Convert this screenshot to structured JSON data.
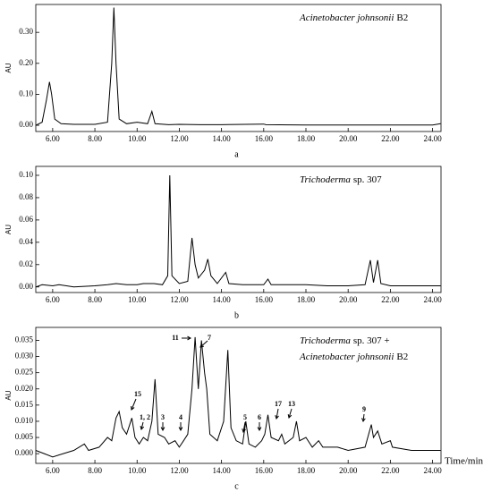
{
  "chart_data": [
    {
      "type": "line",
      "ylabel": "AU",
      "caption": "a",
      "annotation": [
        "Acinetobacter johnsonii",
        "B2"
      ],
      "color": "#000000",
      "x": [
        5.2,
        5.5,
        5.7,
        5.85,
        5.95,
        6.1,
        6.4,
        7.0,
        8.0,
        8.6,
        8.8,
        8.9,
        9.0,
        9.15,
        9.5,
        10.0,
        10.5,
        10.7,
        10.85,
        11.5,
        12.0,
        13.0,
        14.0,
        16.0,
        16.1,
        18.0,
        20.0,
        22.0,
        24.0,
        24.38
      ],
      "values": [
        0.0,
        0.01,
        0.08,
        0.14,
        0.1,
        0.02,
        0.005,
        0.003,
        0.003,
        0.01,
        0.2,
        0.38,
        0.2,
        0.02,
        0.005,
        0.01,
        0.005,
        0.045,
        0.005,
        0.002,
        0.003,
        0.002,
        0.002,
        0.004,
        0.002,
        0.001,
        0.001,
        0.001,
        0.001,
        0.005
      ],
      "xlim": [
        5.2,
        24.4
      ],
      "ylim": [
        -0.02,
        0.39
      ],
      "xticks": [
        {
          "value": 6,
          "label": "6.00"
        },
        {
          "value": 8,
          "label": "8.00"
        },
        {
          "value": 10,
          "label": "10.00"
        },
        {
          "value": 12,
          "label": "12.00"
        },
        {
          "value": 14,
          "label": "14.00"
        },
        {
          "value": 16,
          "label": "16.00"
        },
        {
          "value": 18,
          "label": "18.00"
        },
        {
          "value": 20,
          "label": "20.00"
        },
        {
          "value": 22,
          "label": "22.00"
        },
        {
          "value": 24,
          "label": "24.00"
        }
      ],
      "yticks": [
        {
          "value": 0,
          "label": "0.00"
        },
        {
          "value": 0.1,
          "label": "0.10"
        },
        {
          "value": 0.2,
          "label": "0.20"
        },
        {
          "value": 0.3,
          "label": "0.30"
        }
      ]
    },
    {
      "type": "line",
      "ylabel": "AU",
      "caption": "b",
      "annotation": [
        "Trichoderma",
        "sp. 307"
      ],
      "color": "#000000",
      "x": [
        5.2,
        5.5,
        6.0,
        6.3,
        7.0,
        8.0,
        8.6,
        9.0,
        9.5,
        10.0,
        10.3,
        10.8,
        11.2,
        11.45,
        11.55,
        11.65,
        12.0,
        12.4,
        12.6,
        12.75,
        12.9,
        13.2,
        13.35,
        13.5,
        13.8,
        14.2,
        14.35,
        15.0,
        16.0,
        16.2,
        16.35,
        17.0,
        18.0,
        19.0,
        20.0,
        20.8,
        21.05,
        21.2,
        21.4,
        21.55,
        22.0,
        23.0,
        24.0,
        24.38
      ],
      "values": [
        0.0,
        0.002,
        0.001,
        0.002,
        0.0,
        0.001,
        0.002,
        0.003,
        0.002,
        0.002,
        0.003,
        0.003,
        0.002,
        0.01,
        0.1,
        0.01,
        0.003,
        0.005,
        0.044,
        0.02,
        0.008,
        0.015,
        0.025,
        0.01,
        0.003,
        0.013,
        0.003,
        0.002,
        0.002,
        0.007,
        0.002,
        0.002,
        0.002,
        0.001,
        0.001,
        0.002,
        0.024,
        0.004,
        0.024,
        0.003,
        0.001,
        0.001,
        0.001,
        0.001
      ],
      "xlim": [
        5.2,
        24.4
      ],
      "ylim": [
        -0.005,
        0.108
      ],
      "xticks": [
        {
          "value": 6,
          "label": "6.00"
        },
        {
          "value": 8,
          "label": "8.00"
        },
        {
          "value": 10,
          "label": "10.00"
        },
        {
          "value": 12,
          "label": "12.00"
        },
        {
          "value": 14,
          "label": "14.00"
        },
        {
          "value": 16,
          "label": "16.00"
        },
        {
          "value": 18,
          "label": "18.00"
        },
        {
          "value": 20,
          "label": "20.00"
        },
        {
          "value": 22,
          "label": "22.00"
        },
        {
          "value": 24,
          "label": "24.00"
        }
      ],
      "yticks": [
        {
          "value": 0,
          "label": "0.00"
        },
        {
          "value": 0.02,
          "label": "0.02"
        },
        {
          "value": 0.04,
          "label": "0.04"
        },
        {
          "value": 0.06,
          "label": "0.06"
        },
        {
          "value": 0.08,
          "label": "0.08"
        },
        {
          "value": 0.1,
          "label": "0.10"
        }
      ]
    },
    {
      "type": "line",
      "ylabel": "AU",
      "caption": "c",
      "xlabel": "Time/min",
      "annotation": [
        "Trichoderma",
        "sp. 307 +",
        "Acinetobacter johnsonii",
        "B2"
      ],
      "peak_labels": [
        "11",
        "7",
        "15",
        "1, 2",
        "3",
        "4",
        "5",
        "6",
        "17",
        "13",
        "9"
      ],
      "color": "#000000",
      "x": [
        5.2,
        5.6,
        6.0,
        6.5,
        7.0,
        7.5,
        7.7,
        8.2,
        8.6,
        8.8,
        9.0,
        9.15,
        9.3,
        9.5,
        9.75,
        9.9,
        10.1,
        10.3,
        10.5,
        10.7,
        10.85,
        11.0,
        11.3,
        11.5,
        11.8,
        12.0,
        12.2,
        12.4,
        12.6,
        12.75,
        12.9,
        13.05,
        13.2,
        13.3,
        13.45,
        13.8,
        14.1,
        14.3,
        14.45,
        14.7,
        15.0,
        15.15,
        15.3,
        15.6,
        15.9,
        16.05,
        16.2,
        16.35,
        16.7,
        16.85,
        17.0,
        17.4,
        17.55,
        17.7,
        18.0,
        18.3,
        18.6,
        18.8,
        19.5,
        20.0,
        20.8,
        21.1,
        21.2,
        21.4,
        21.6,
        22.0,
        22.1,
        23.0,
        24.0,
        24.38
      ],
      "values": [
        0.001,
        0.0,
        -0.001,
        0.0,
        0.001,
        0.003,
        0.001,
        0.002,
        0.005,
        0.004,
        0.011,
        0.013,
        0.008,
        0.006,
        0.011,
        0.005,
        0.003,
        0.005,
        0.004,
        0.01,
        0.023,
        0.006,
        0.005,
        0.003,
        0.004,
        0.002,
        0.004,
        0.006,
        0.02,
        0.036,
        0.02,
        0.035,
        0.025,
        0.02,
        0.006,
        0.004,
        0.01,
        0.032,
        0.008,
        0.004,
        0.003,
        0.01,
        0.003,
        0.002,
        0.004,
        0.006,
        0.012,
        0.005,
        0.004,
        0.006,
        0.003,
        0.005,
        0.01,
        0.004,
        0.005,
        0.002,
        0.004,
        0.002,
        0.002,
        0.001,
        0.002,
        0.009,
        0.005,
        0.007,
        0.003,
        0.004,
        0.002,
        0.001,
        0.001,
        0.001
      ],
      "xlim": [
        5.2,
        24.4
      ],
      "ylim": [
        -0.003,
        0.039
      ],
      "xticks": [
        {
          "value": 6,
          "label": "6.00"
        },
        {
          "value": 8,
          "label": "8.00"
        },
        {
          "value": 10,
          "label": "10.00"
        },
        {
          "value": 12,
          "label": "12.00"
        },
        {
          "value": 14,
          "label": "14.00"
        },
        {
          "value": 16,
          "label": "16.00"
        },
        {
          "value": 18,
          "label": "18.00"
        },
        {
          "value": 20,
          "label": "20.00"
        },
        {
          "value": 22,
          "label": "22.00"
        },
        {
          "value": 24,
          "label": "24.00"
        }
      ],
      "yticks": [
        {
          "value": 0,
          "label": "0.000"
        },
        {
          "value": 0.005,
          "label": "0.005"
        },
        {
          "value": 0.01,
          "label": "0.010"
        },
        {
          "value": 0.015,
          "label": "0.015"
        },
        {
          "value": 0.02,
          "label": "0.020"
        },
        {
          "value": 0.025,
          "label": "0.025"
        },
        {
          "value": 0.03,
          "label": "0.030"
        },
        {
          "value": 0.035,
          "label": "0.035"
        }
      ]
    }
  ]
}
